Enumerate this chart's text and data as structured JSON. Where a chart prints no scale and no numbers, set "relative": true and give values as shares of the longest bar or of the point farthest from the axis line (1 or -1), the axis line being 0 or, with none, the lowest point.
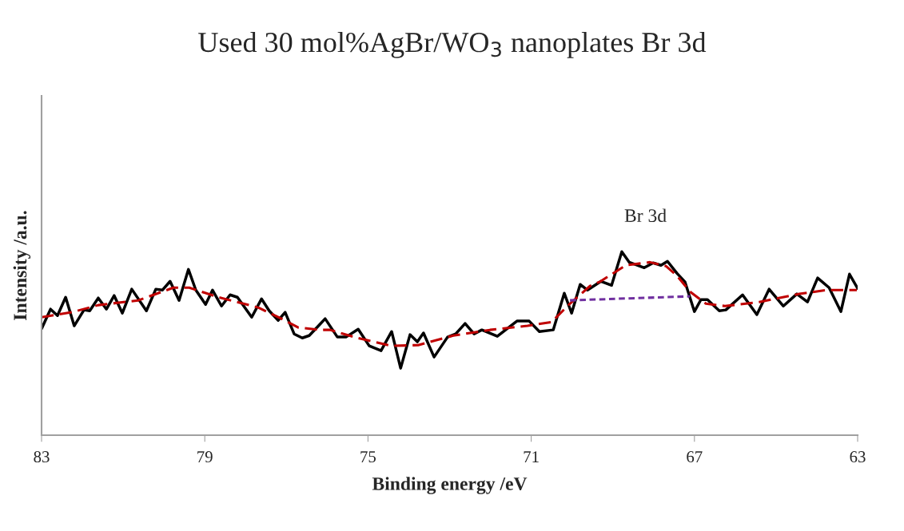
{
  "chart_data": {
    "type": "line",
    "title": "Used 30 mol%AgBr/WO$_{3}$ nanoplates Br 3d",
    "xlabel": "Binding energy /eV",
    "ylabel": "Intensity /a.u.",
    "relative": true,
    "xlim": [
      83,
      63
    ],
    "xticks": [
      83,
      79,
      75,
      71,
      67,
      63
    ],
    "grid": false,
    "legend": false,
    "annotations": [
      "Br 3d"
    ],
    "series": [
      {
        "color": "#000000",
        "line_style": "solid",
        "x": [
          83.0,
          82.78,
          82.61,
          82.41,
          82.2,
          81.96,
          81.82,
          81.61,
          81.41,
          81.22,
          81.02,
          80.79,
          80.43,
          80.2,
          80.04,
          79.85,
          79.63,
          79.4,
          79.22,
          78.98,
          78.81,
          78.59,
          78.38,
          78.2,
          77.85,
          77.61,
          77.42,
          77.2,
          77.03,
          76.81,
          76.61,
          76.44,
          76.18,
          76.05,
          75.75,
          75.54,
          75.24,
          74.97,
          74.68,
          74.42,
          74.2,
          73.97,
          73.79,
          73.64,
          73.38,
          73.05,
          72.85,
          72.62,
          72.4,
          72.21,
          71.83,
          71.35,
          71.05,
          70.8,
          70.46,
          70.19,
          70.01,
          69.8,
          69.62,
          69.29,
          69.03,
          68.78,
          68.6,
          68.23,
          68.01,
          67.82,
          67.66,
          67.43,
          67.23,
          67.0,
          66.84,
          66.68,
          66.39,
          66.23,
          65.82,
          65.47,
          65.17,
          64.82,
          64.49,
          64.23,
          63.98,
          63.7,
          63.41,
          63.2,
          63.0
        ],
        "values": [
          0.58,
          0.687,
          0.652,
          0.752,
          0.596,
          0.683,
          0.678,
          0.748,
          0.687,
          0.761,
          0.665,
          0.796,
          0.678,
          0.796,
          0.791,
          0.839,
          0.735,
          0.904,
          0.791,
          0.713,
          0.791,
          0.704,
          0.765,
          0.752,
          0.643,
          0.743,
          0.678,
          0.626,
          0.67,
          0.552,
          0.53,
          0.543,
          0.604,
          0.635,
          0.535,
          0.535,
          0.578,
          0.487,
          0.461,
          0.565,
          0.365,
          0.548,
          0.509,
          0.557,
          0.426,
          0.535,
          0.552,
          0.609,
          0.552,
          0.574,
          0.539,
          0.622,
          0.622,
          0.565,
          0.574,
          0.774,
          0.665,
          0.822,
          0.791,
          0.839,
          0.817,
          1.0,
          0.943,
          0.913,
          0.939,
          0.926,
          0.948,
          0.883,
          0.835,
          0.674,
          0.739,
          0.739,
          0.678,
          0.683,
          0.765,
          0.657,
          0.796,
          0.704,
          0.77,
          0.726,
          0.857,
          0.804,
          0.674,
          0.878,
          0.8
        ]
      },
      {
        "color": "#c00000",
        "line_style": "dashed",
        "x": [
          83.0,
          82.26,
          81.61,
          80.63,
          79.77,
          79.38,
          78.67,
          77.69,
          77.16,
          76.71,
          76.18,
          75.93,
          75.26,
          74.42,
          73.77,
          72.91,
          72.01,
          71.09,
          70.5,
          70.05,
          69.56,
          69.33,
          68.68,
          68.09,
          67.7,
          67.43,
          67.11,
          66.72,
          66.25,
          65.41,
          64.43,
          63.78,
          63.02
        ],
        "values": [
          0.643,
          0.67,
          0.709,
          0.735,
          0.804,
          0.804,
          0.752,
          0.696,
          0.639,
          0.587,
          0.574,
          0.574,
          0.53,
          0.487,
          0.491,
          0.543,
          0.574,
          0.596,
          0.617,
          0.717,
          0.813,
          0.835,
          0.926,
          0.943,
          0.922,
          0.87,
          0.783,
          0.717,
          0.704,
          0.726,
          0.77,
          0.791,
          0.791
        ]
      },
      {
        "color": "#7030a0",
        "line_style": "dotted",
        "x": [
          70.05,
          67.11
        ],
        "values": [
          0.735,
          0.757
        ]
      }
    ]
  }
}
